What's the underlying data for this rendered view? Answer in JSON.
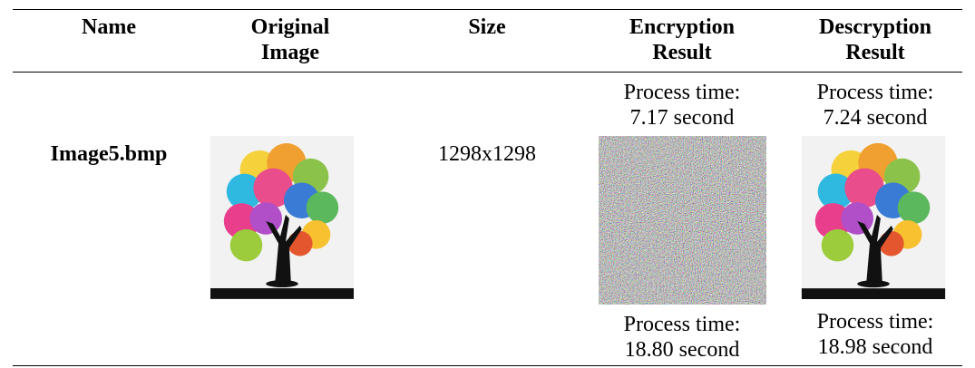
{
  "table": {
    "header": [
      "Name",
      "Original Image",
      "Size",
      "Encryption Result",
      "Descryption Result"
    ],
    "rows": [
      {
        "encryption": "Process time: 7.17 second",
        "decryption": "Process time: 7.24 second"
      },
      {
        "name": "Image5.bmp",
        "size": "1298x1298"
      },
      {
        "encryption": "Process time: 18.80 second",
        "decryption": "Process time: 18.98 second"
      }
    ]
  }
}
